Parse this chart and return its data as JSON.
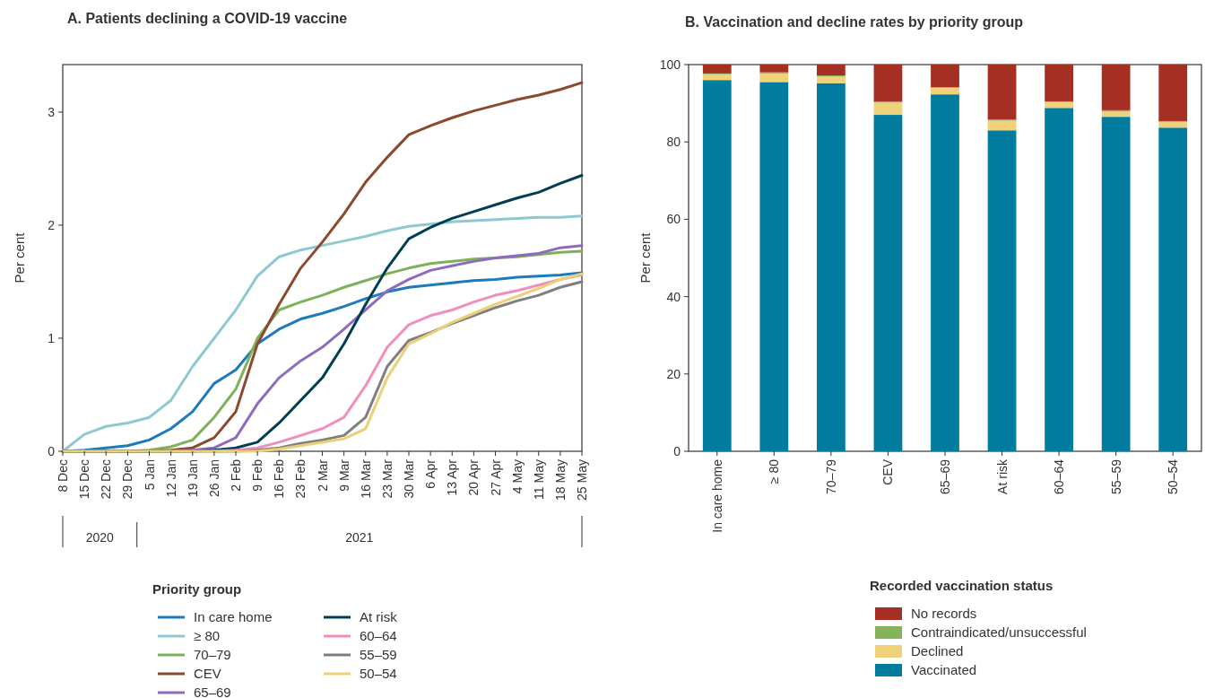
{
  "chart_data": [
    {
      "type": "line",
      "title": "A. Patients declining a COVID-19 vaccine",
      "ylabel": "Per cent",
      "legend_title": "Priority group",
      "legend": "bottom",
      "annotations": [
        "2020",
        "2021"
      ],
      "x": [
        "2020-12-08",
        "2020-12-15",
        "2020-12-22",
        "2020-12-29",
        "2021-01-05",
        "2021-01-12",
        "2021-01-19",
        "2021-01-26",
        "2021-02-02",
        "2021-02-09",
        "2021-02-16",
        "2021-02-23",
        "2021-03-02",
        "2021-03-09",
        "2021-03-16",
        "2021-03-23",
        "2021-03-30",
        "2021-04-06",
        "2021-04-13",
        "2021-04-20",
        "2021-04-27",
        "2021-05-04",
        "2021-05-11",
        "2021-05-18",
        "2021-05-25"
      ],
      "xlim": [
        "2020-12-08",
        "2021-05-25"
      ],
      "xticks": [
        {
          "value": "2020-12-08",
          "label": "8 Dec"
        },
        {
          "value": "2020-12-15",
          "label": "15 Dec"
        },
        {
          "value": "2020-12-22",
          "label": "22 Dec"
        },
        {
          "value": "2020-12-29",
          "label": "29 Dec"
        },
        {
          "value": "2021-01-05",
          "label": "5 Jan"
        },
        {
          "value": "2021-01-12",
          "label": "12 Jan"
        },
        {
          "value": "2021-01-19",
          "label": "19 Jan"
        },
        {
          "value": "2021-01-26",
          "label": "26 Jan"
        },
        {
          "value": "2021-02-02",
          "label": "2 Feb"
        },
        {
          "value": "2021-02-09",
          "label": "9 Feb"
        },
        {
          "value": "2021-02-16",
          "label": "16 Feb"
        },
        {
          "value": "2021-02-23",
          "label": "23 Feb"
        },
        {
          "value": "2021-03-02",
          "label": "2 Mar"
        },
        {
          "value": "2021-03-09",
          "label": "9 Mar"
        },
        {
          "value": "2021-03-16",
          "label": "16 Mar"
        },
        {
          "value": "2021-03-23",
          "label": "23 Mar"
        },
        {
          "value": "2021-03-30",
          "label": "30 Mar"
        },
        {
          "value": "2021-04-06",
          "label": "6 Apr"
        },
        {
          "value": "2021-04-13",
          "label": "13 Apr"
        },
        {
          "value": "2021-04-20",
          "label": "20 Apr"
        },
        {
          "value": "2021-04-27",
          "label": "27 Apr"
        },
        {
          "value": "2021-05-04",
          "label": "4 May"
        },
        {
          "value": "2021-05-11",
          "label": "11 May"
        },
        {
          "value": "2021-05-18",
          "label": "18 May"
        },
        {
          "value": "2021-05-25",
          "label": "25 May"
        }
      ],
      "ylim": [
        0,
        3.42
      ],
      "yticks": [
        0,
        1,
        2,
        3
      ],
      "series": [
        {
          "name": "In care home",
          "color": "#1b7bbd",
          "values": [
            0,
            0.01,
            0.03,
            0.05,
            0.1,
            0.2,
            0.35,
            0.6,
            0.72,
            0.95,
            1.08,
            1.17,
            1.22,
            1.28,
            1.35,
            1.41,
            1.45,
            1.47,
            1.49,
            1.51,
            1.52,
            1.54,
            1.55,
            1.56,
            1.58
          ]
        },
        {
          "name": "≥ 80",
          "color": "#8ec9d2",
          "values": [
            0,
            0.15,
            0.22,
            0.25,
            0.3,
            0.45,
            0.75,
            1.0,
            1.25,
            1.55,
            1.72,
            1.78,
            1.82,
            1.86,
            1.9,
            1.95,
            1.99,
            2.01,
            2.03,
            2.04,
            2.05,
            2.06,
            2.07,
            2.07,
            2.08
          ]
        },
        {
          "name": "70–79",
          "color": "#7fb05a",
          "values": [
            0,
            0,
            0,
            0,
            0.01,
            0.04,
            0.1,
            0.3,
            0.55,
            1.0,
            1.25,
            1.32,
            1.38,
            1.45,
            1.51,
            1.57,
            1.62,
            1.66,
            1.68,
            1.7,
            1.71,
            1.72,
            1.74,
            1.76,
            1.77
          ]
        },
        {
          "name": "CEV",
          "color": "#8b4a2e",
          "values": [
            0,
            0,
            0,
            0,
            0,
            0.01,
            0.03,
            0.12,
            0.35,
            0.95,
            1.3,
            1.62,
            1.85,
            2.1,
            2.38,
            2.6,
            2.8,
            2.88,
            2.95,
            3.01,
            3.06,
            3.11,
            3.15,
            3.2,
            3.26
          ]
        },
        {
          "name": "65–69",
          "color": "#8e6bbd",
          "values": [
            0,
            0,
            0,
            0,
            0,
            0,
            0.01,
            0.03,
            0.12,
            0.42,
            0.65,
            0.8,
            0.92,
            1.08,
            1.25,
            1.42,
            1.52,
            1.6,
            1.64,
            1.68,
            1.71,
            1.73,
            1.75,
            1.8,
            1.82
          ]
        },
        {
          "name": "At risk",
          "color": "#003f52",
          "values": [
            0,
            0,
            0,
            0,
            0,
            0,
            0,
            0.01,
            0.03,
            0.08,
            0.25,
            0.45,
            0.65,
            0.95,
            1.3,
            1.62,
            1.88,
            1.98,
            2.06,
            2.12,
            2.18,
            2.24,
            2.29,
            2.37,
            2.44
          ]
        },
        {
          "name": "60–64",
          "color": "#f28ebc",
          "values": [
            null,
            null,
            null,
            null,
            null,
            null,
            null,
            0,
            0.01,
            0.03,
            0.08,
            0.14,
            0.2,
            0.3,
            0.58,
            0.92,
            1.12,
            1.2,
            1.25,
            1.32,
            1.38,
            1.42,
            1.47,
            1.52,
            1.56
          ]
        },
        {
          "name": "55–59",
          "color": "#7f7f7f",
          "values": [
            0,
            0,
            0,
            0,
            0,
            0,
            0,
            0,
            0,
            0.01,
            0.03,
            0.07,
            0.1,
            0.14,
            0.3,
            0.75,
            0.98,
            1.05,
            1.13,
            1.2,
            1.27,
            1.33,
            1.38,
            1.45,
            1.5
          ]
        },
        {
          "name": "50–54",
          "color": "#ecd078",
          "values": [
            0,
            0,
            0,
            0,
            0,
            0,
            0,
            0,
            0,
            0,
            0.02,
            0.05,
            0.08,
            0.11,
            0.2,
            0.65,
            0.95,
            1.04,
            1.14,
            1.22,
            1.3,
            1.37,
            1.44,
            1.52,
            1.57
          ]
        }
      ]
    },
    {
      "type": "bar",
      "stacked": true,
      "title": "B. Vaccination and decline rates by priority group",
      "ylabel": "Per cent",
      "legend_title": "Recorded vaccination status",
      "legend": "bottom",
      "categories": [
        "In care home",
        "≥ 80",
        "70–79",
        "CEV",
        "65–69",
        "At risk",
        "60–64",
        "55–59",
        "50–54"
      ],
      "ylim": [
        0,
        100
      ],
      "yticks": [
        0,
        20,
        40,
        60,
        80,
        100
      ],
      "series": [
        {
          "name": "Vaccinated",
          "color": "#017b9e",
          "values": [
            96,
            95.5,
            95.2,
            87,
            92.3,
            83,
            88.8,
            86.5,
            83.7
          ]
        },
        {
          "name": "Declined",
          "color": "#efd27a",
          "values": [
            1.5,
            2.2,
            1.7,
            3.2,
            1.7,
            2.5,
            1.5,
            1.4,
            1.5
          ]
        },
        {
          "name": "Contraindicated/unsuccessful",
          "color": "#84b35a",
          "values": [
            0.2,
            0.3,
            0.3,
            0.3,
            0.2,
            0.3,
            0.2,
            0.3,
            0.2
          ]
        },
        {
          "name": "No records",
          "color": "#a52f23",
          "values": [
            2.3,
            2,
            2.8,
            9.5,
            5.8,
            14.2,
            9.5,
            11.8,
            14.6
          ]
        }
      ]
    }
  ]
}
